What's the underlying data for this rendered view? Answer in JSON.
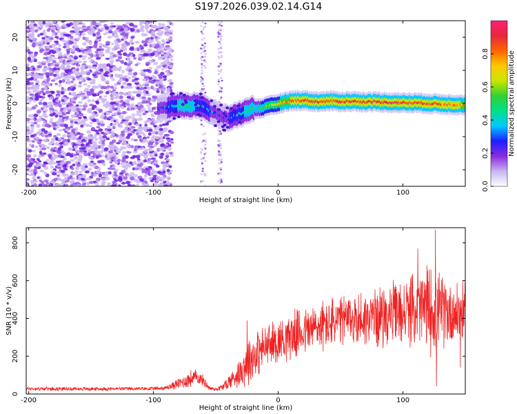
{
  "figure": {
    "title": "S197.2026.039.02.14.G14"
  },
  "chart_data": [
    {
      "type": "heatmap",
      "name": "spectrogram",
      "xlabel": "Height of straight line (km)",
      "ylabel": "Frequency (Hz)",
      "xlim": [
        -202,
        150
      ],
      "ylim": [
        -25,
        25
      ],
      "xticks": [
        -200,
        -100,
        0,
        100
      ],
      "yticks": [
        -20,
        -10,
        0,
        10,
        20
      ],
      "colorbar": {
        "label": "Normalized spectral amplitude",
        "range": [
          0,
          1
        ],
        "ticks": [
          0.0,
          0.2,
          0.4,
          0.6,
          0.8
        ],
        "colormap": [
          "#ffffff",
          "#c8b4f0",
          "#8a2be2",
          "#1e1eff",
          "#00c8ff",
          "#00e08a",
          "#32d232",
          "#c8e600",
          "#ffc800",
          "#ff6400",
          "#e6283c",
          "#ff1e78"
        ]
      },
      "noise_region_x": [
        -202,
        -85
      ],
      "signal_trace": {
        "x": [
          -97,
          -90,
          -80,
          -72,
          -65,
          -60,
          -55,
          -50,
          -45,
          -40,
          -35,
          -30,
          -25,
          -20,
          -15,
          -10,
          -5,
          0,
          5,
          10,
          20,
          30,
          40,
          50,
          60,
          70,
          80,
          90,
          100,
          110,
          120,
          130,
          140,
          150
        ],
        "freq": [
          -1.5,
          -1.2,
          -0.5,
          -0.8,
          -0.5,
          -1.0,
          -2.5,
          -3.0,
          -4.0,
          -4.5,
          -3.5,
          -3.0,
          -2.0,
          -1.5,
          -1.5,
          -1.0,
          -0.5,
          0.0,
          0.5,
          0.8,
          1.0,
          0.5,
          0.7,
          0.6,
          0.6,
          0.5,
          0.5,
          0.3,
          0.2,
          0.2,
          0.0,
          -0.2,
          -0.3,
          -0.4
        ],
        "amplitude": [
          0.25,
          0.3,
          0.45,
          0.5,
          0.4,
          0.35,
          0.3,
          0.25,
          0.25,
          0.3,
          0.35,
          0.4,
          0.45,
          0.45,
          0.5,
          0.55,
          0.6,
          0.7,
          0.75,
          0.8,
          0.85,
          0.85,
          0.85,
          0.88,
          0.9,
          0.9,
          0.9,
          0.9,
          0.88,
          0.85,
          0.85,
          0.82,
          0.8,
          0.78
        ]
      }
    },
    {
      "type": "line",
      "name": "snr",
      "xlabel": "Height of straight line (km)",
      "ylabel": "SNR (10 * v/v)",
      "xlim": [
        -202,
        150
      ],
      "ylim": [
        0,
        880
      ],
      "xticks": [
        -200,
        -100,
        0,
        100
      ],
      "yticks": [
        0,
        200,
        400,
        600,
        800
      ],
      "color": "#ee2222",
      "series": [
        {
          "name": "SNR",
          "envelope_x": [
            -202,
            -150,
            -100,
            -90,
            -80,
            -70,
            -65,
            -60,
            -55,
            -50,
            -45,
            -40,
            -30,
            -25,
            -20,
            -10,
            0,
            10,
            20,
            30,
            40,
            50,
            60,
            70,
            80,
            90,
            100,
            110,
            120,
            130,
            140,
            150
          ],
          "mean": [
            28,
            27,
            28,
            32,
            55,
            80,
            90,
            70,
            30,
            25,
            35,
            60,
            120,
            170,
            200,
            250,
            280,
            310,
            330,
            350,
            370,
            385,
            395,
            400,
            410,
            420,
            430,
            445,
            455,
            440,
            430,
            430
          ],
          "spread": [
            10,
            10,
            10,
            12,
            30,
            50,
            40,
            30,
            12,
            10,
            20,
            40,
            80,
            150,
            130,
            120,
            120,
            130,
            130,
            140,
            140,
            140,
            150,
            150,
            160,
            170,
            180,
            190,
            250,
            200,
            180,
            160
          ],
          "peaks": [
            {
              "x": -25,
              "y": 390
            },
            {
              "x": 126,
              "y": 870
            },
            {
              "x": 112,
              "y": 770
            },
            {
              "x": 127,
              "y": 40
            },
            {
              "x": 146,
              "y": 140
            }
          ]
        }
      ]
    }
  ]
}
